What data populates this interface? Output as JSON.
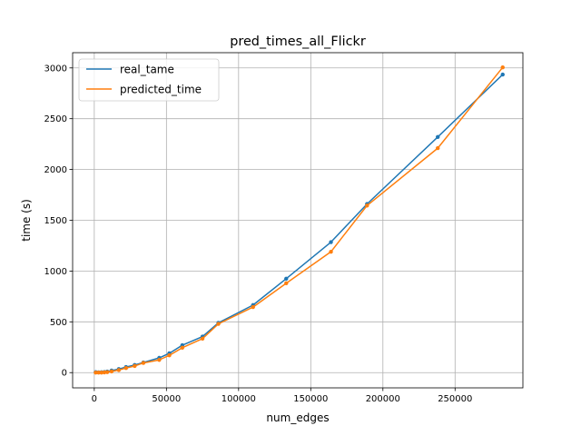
{
  "chart_data": {
    "type": "line",
    "title": "pred_times_all_Flickr",
    "xlabel": "num_edges",
    "ylabel": "time (s)",
    "xlim": [
      -15000,
      297000
    ],
    "ylim": [
      -150,
      3150
    ],
    "xticks": [
      0,
      50000,
      100000,
      150000,
      200000,
      250000
    ],
    "xtick_labels": [
      "0",
      "50000",
      "100000",
      "150000",
      "200000",
      "250000"
    ],
    "yticks": [
      0,
      500,
      1000,
      1500,
      2000,
      2500,
      3000
    ],
    "ytick_labels": [
      "0",
      "500",
      "1000",
      "1500",
      "2000",
      "2500",
      "3000"
    ],
    "grid": true,
    "legend_position": "upper-left",
    "series": [
      {
        "name": "real_tame",
        "color": "#1f77b4",
        "x": [
          1000,
          3000,
          5000,
          7000,
          9000,
          12000,
          17000,
          22000,
          28000,
          34000,
          45000,
          52000,
          61000,
          75000,
          86000,
          110000,
          133000,
          164000,
          189000,
          238000,
          283000
        ],
        "y": [
          5,
          3,
          4,
          6,
          10,
          20,
          35,
          55,
          75,
          100,
          145,
          190,
          270,
          355,
          490,
          665,
          925,
          1285,
          1660,
          2320,
          2935
        ]
      },
      {
        "name": "predicted_time",
        "color": "#ff7f0e",
        "x": [
          1000,
          3000,
          5000,
          7000,
          9000,
          12000,
          17000,
          22000,
          28000,
          34000,
          45000,
          52000,
          61000,
          75000,
          86000,
          110000,
          133000,
          164000,
          189000,
          238000,
          283000
        ],
        "y": [
          0,
          0,
          0,
          2,
          5,
          12,
          25,
          45,
          65,
          95,
          125,
          170,
          245,
          335,
          480,
          645,
          880,
          1190,
          1645,
          2210,
          3005
        ]
      }
    ]
  }
}
